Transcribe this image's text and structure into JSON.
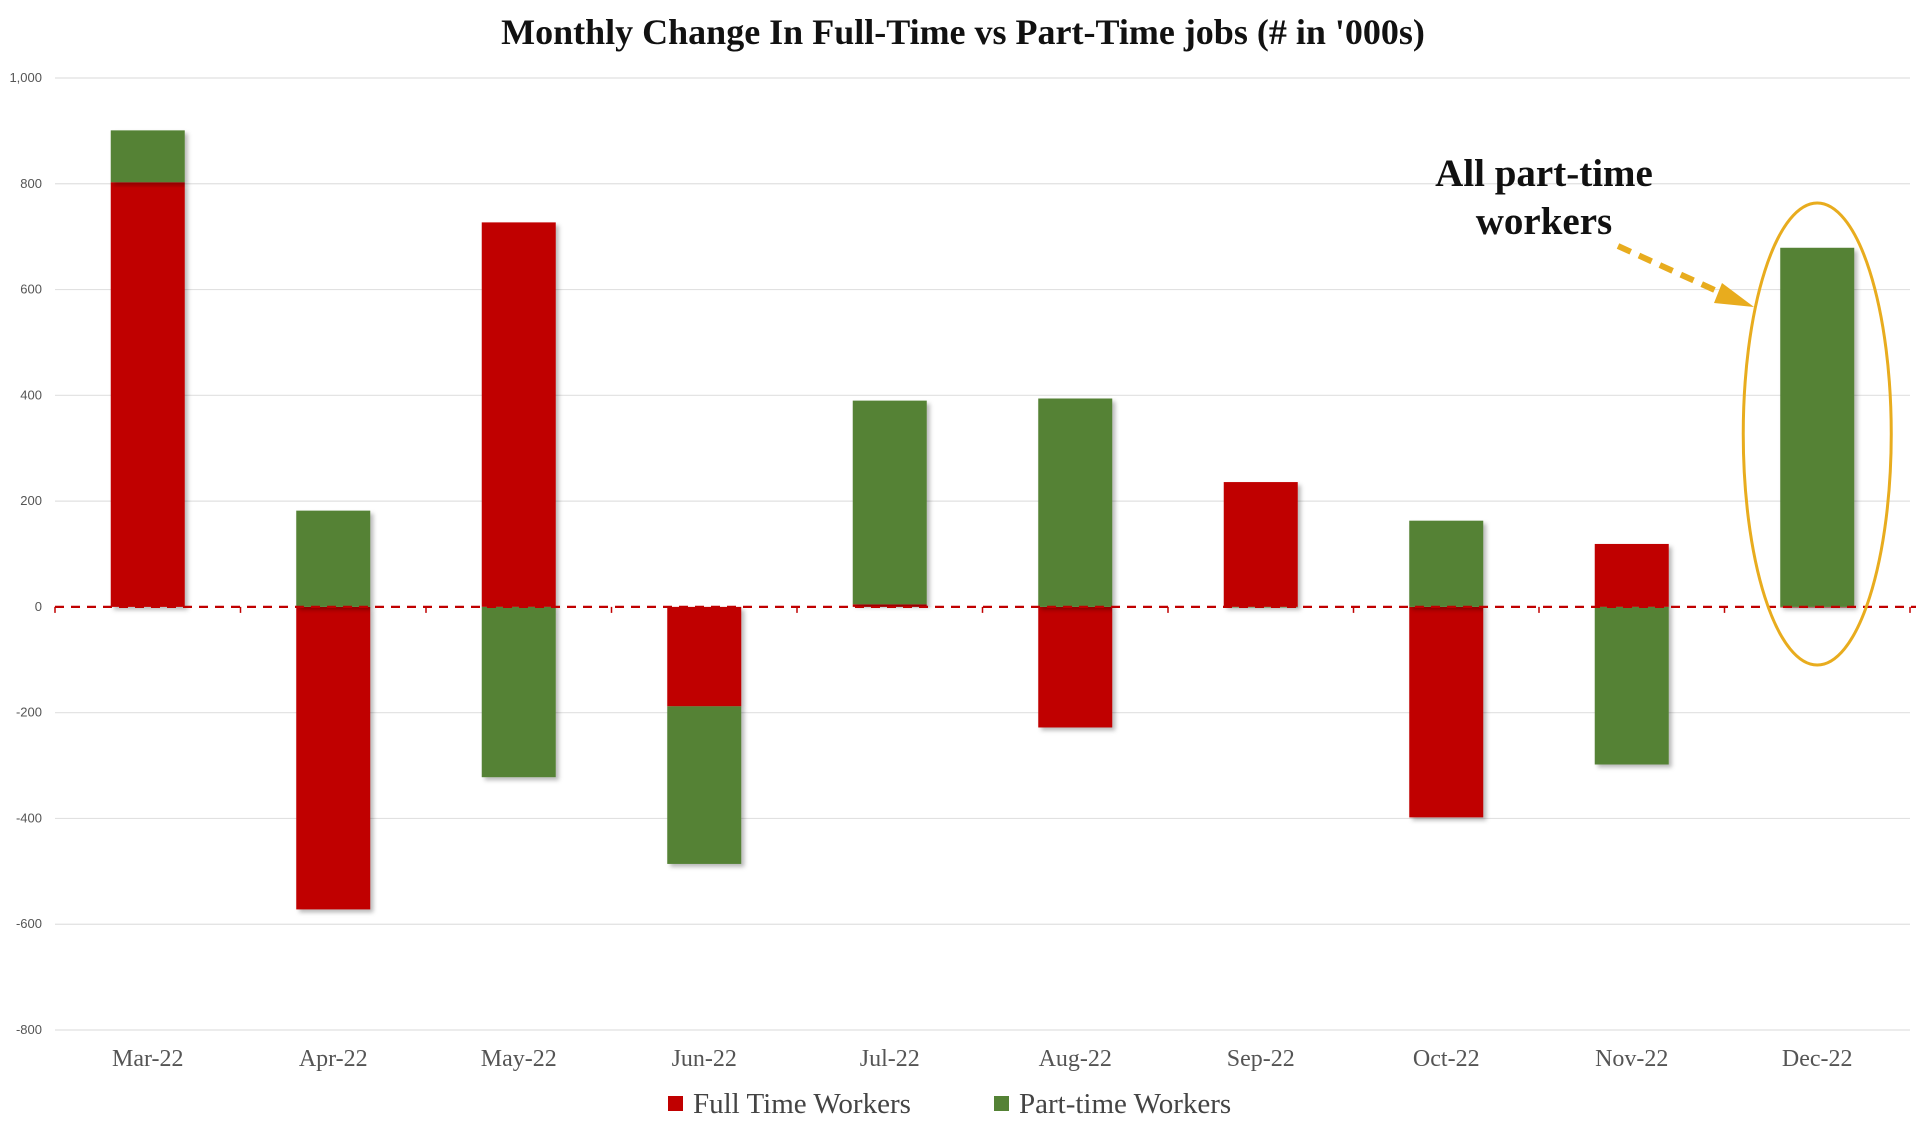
{
  "chart_data": {
    "type": "bar",
    "stacked": true,
    "title": "Monthly Change In Full-Time vs Part-Time jobs (# in '000s)",
    "categories": [
      "Mar-22",
      "Apr-22",
      "May-22",
      "Jun-22",
      "Jul-22",
      "Aug-22",
      "Sep-22",
      "Oct-22",
      "Nov-22",
      "Dec-22"
    ],
    "series": [
      {
        "name": "Full Time Workers",
        "color": "#c00000",
        "values": [
          803,
          -572,
          727,
          -188,
          5,
          -228,
          236,
          -398,
          119,
          -1
        ]
      },
      {
        "name": "Part-time Workers",
        "color": "#548235",
        "values": [
          98,
          182,
          -322,
          -298,
          385,
          394,
          -1,
          163,
          -298,
          679
        ]
      }
    ],
    "ylim": [
      -800,
      1000
    ],
    "yticks": [
      1000,
      800,
      600,
      400,
      200,
      0,
      -200,
      -400,
      -600,
      -800
    ],
    "ytick_labels": [
      "1,000",
      "800",
      "600",
      "400",
      "200",
      "0",
      "-200",
      "-400",
      "-600",
      "-800"
    ],
    "grid": true,
    "zero_line": "dashed red",
    "legend": "bottom-center",
    "xlabel": "",
    "ylabel": "",
    "annotation": {
      "lines": [
        "All part-time",
        "workers"
      ],
      "target_category": "Dec-22",
      "highlight_color": "#e8ac1e"
    }
  }
}
